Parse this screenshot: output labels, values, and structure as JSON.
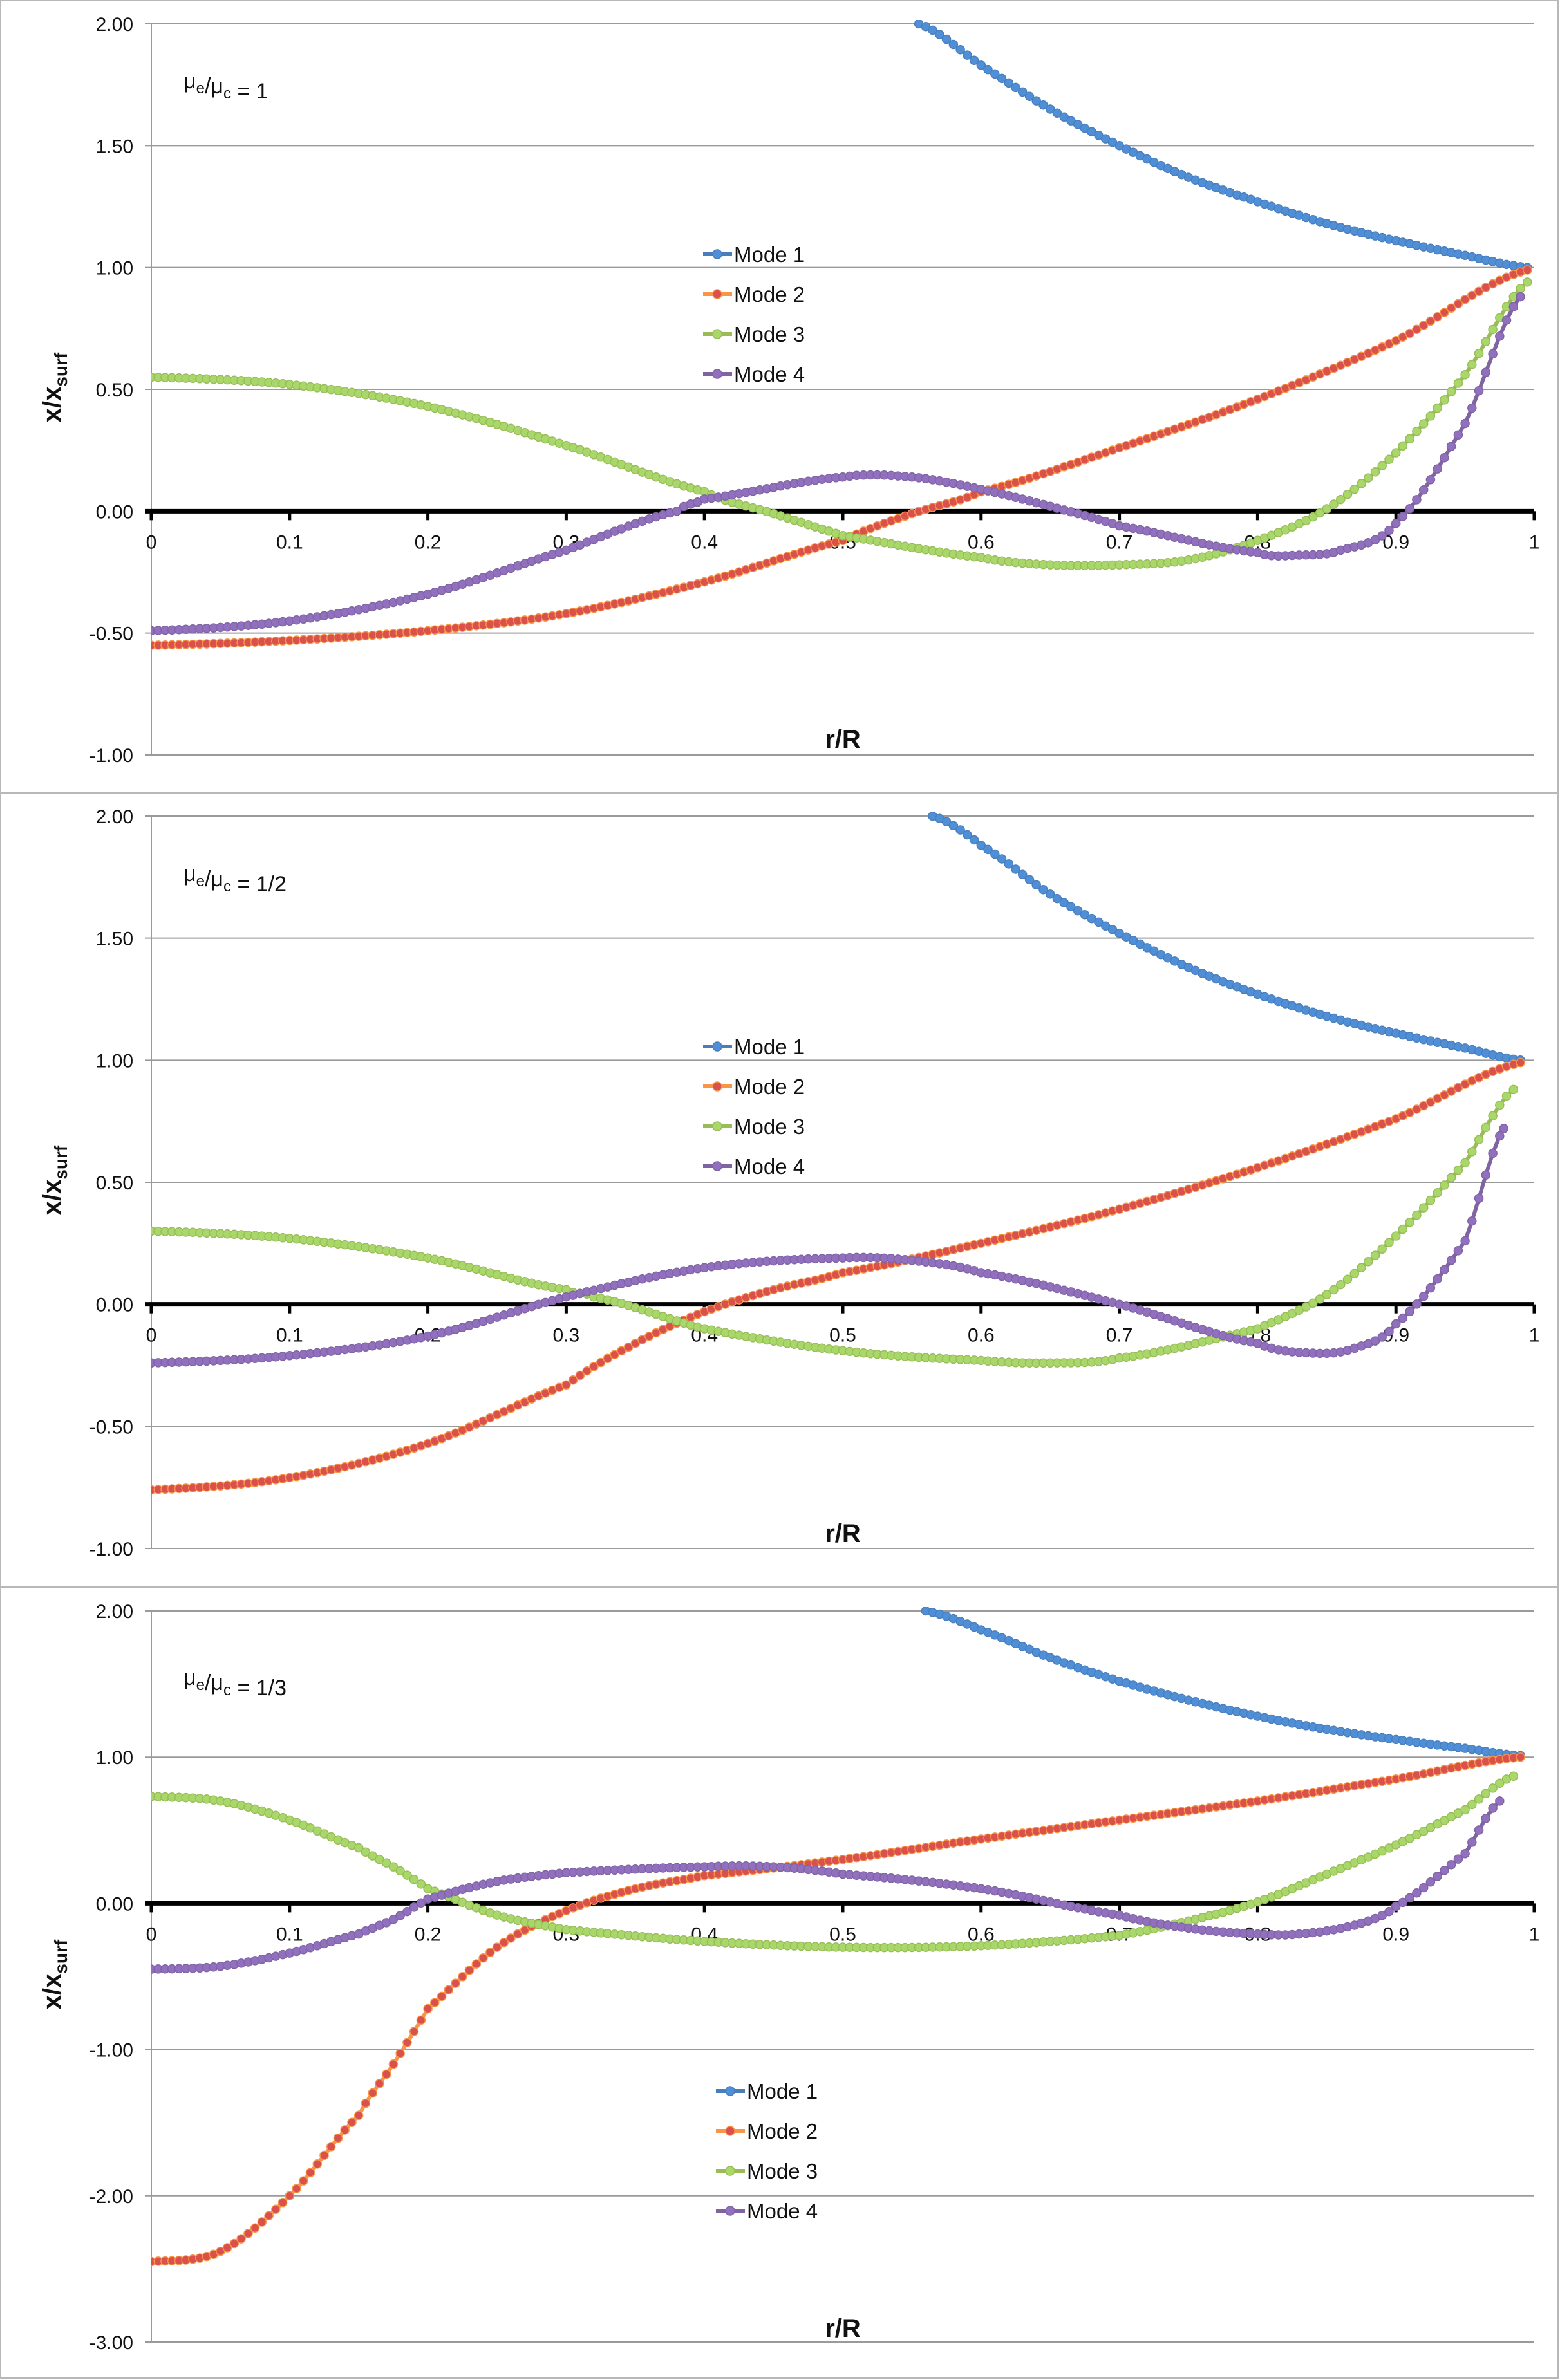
{
  "colors": {
    "mode1": {
      "line": "#4a7ebb",
      "marker": "#4f8fd8"
    },
    "mode2": {
      "line": "#f79646",
      "marker": "#d9504c"
    },
    "mode3": {
      "line": "#9bbb59",
      "marker": "#a8d86a"
    },
    "mode4": {
      "line": "#8064a2",
      "marker": "#9070bf"
    },
    "grid": "#9a9a9a",
    "zero_axis": "#000000"
  },
  "chart_data": [
    {
      "type": "line",
      "annotation": "μe/μc = 1",
      "annotation_parts": {
        "mu": "μ",
        "sub1": "e",
        "slash": "/",
        "sub2": "c",
        "rhs": " = 1"
      },
      "xlabel": "r/R",
      "ylabel": "x/x_surf",
      "ylabel_parts": {
        "main": "x/x",
        "sub": "surf"
      },
      "xlim": [
        0,
        1
      ],
      "ylim": [
        -1.0,
        2.0
      ],
      "yticks": [
        "2.00",
        "1.50",
        "1.00",
        "0.50",
        "0.00",
        "-0.50",
        "-1.00"
      ],
      "ytick_values": [
        2.0,
        1.5,
        1.0,
        0.5,
        0.0,
        -0.5,
        -1.0
      ],
      "xticks": [
        "0",
        "0.1",
        "0.2",
        "0.3",
        "0.4",
        "0.5",
        "0.6",
        "0.7",
        "0.8",
        "0.9",
        "1"
      ],
      "grid": true,
      "legend": {
        "placement": "upper-center",
        "entries": [
          "Mode 1",
          "Mode 2",
          "Mode 3",
          "Mode 4"
        ]
      },
      "series": [
        {
          "name": "Mode 1",
          "x": [
            0.555,
            0.6,
            0.65,
            0.7,
            0.75,
            0.8,
            0.85,
            0.9,
            0.95,
            0.995
          ],
          "y": [
            2.0,
            1.83,
            1.65,
            1.5,
            1.37,
            1.27,
            1.18,
            1.11,
            1.05,
            1.0
          ]
        },
        {
          "name": "Mode 2",
          "x": [
            0,
            0.1,
            0.2,
            0.3,
            0.4,
            0.5,
            0.55,
            0.6,
            0.7,
            0.8,
            0.9,
            0.995
          ],
          "y": [
            -0.55,
            -0.53,
            -0.49,
            -0.42,
            -0.29,
            -0.12,
            -0.01,
            0.08,
            0.26,
            0.46,
            0.7,
            0.99
          ]
        },
        {
          "name": "Mode 3",
          "x": [
            0,
            0.1,
            0.2,
            0.3,
            0.4,
            0.45,
            0.5,
            0.6,
            0.65,
            0.7,
            0.75,
            0.8,
            0.85,
            0.9,
            0.95,
            0.995
          ],
          "y": [
            0.55,
            0.52,
            0.43,
            0.27,
            0.08,
            -0.01,
            -0.1,
            -0.19,
            -0.22,
            -0.22,
            -0.2,
            -0.12,
            0.01,
            0.24,
            0.56,
            0.94
          ]
        },
        {
          "name": "Mode 4",
          "x": [
            0,
            0.1,
            0.2,
            0.3,
            0.38,
            0.4,
            0.5,
            0.55,
            0.6,
            0.65,
            0.7,
            0.8,
            0.83,
            0.86,
            0.9,
            0.95,
            0.99
          ],
          "y": [
            -0.49,
            -0.45,
            -0.34,
            -0.16,
            0.0,
            0.05,
            0.14,
            0.14,
            0.09,
            0.02,
            -0.06,
            -0.17,
            -0.18,
            -0.16,
            -0.05,
            0.36,
            0.88
          ]
        }
      ]
    },
    {
      "type": "line",
      "annotation": "μe/μc = 1/2",
      "annotation_parts": {
        "mu": "μ",
        "sub1": "e",
        "slash": "/",
        "sub2": "c",
        "rhs": " = 1/2"
      },
      "xlabel": "r/R",
      "ylabel": "x/x_surf",
      "ylabel_parts": {
        "main": "x/x",
        "sub": "surf"
      },
      "xlim": [
        0,
        1
      ],
      "ylim": [
        -1.0,
        2.0
      ],
      "yticks": [
        "2.00",
        "1.50",
        "1.00",
        "0.50",
        "0.00",
        "-0.50",
        "-1.00"
      ],
      "ytick_values": [
        2.0,
        1.5,
        1.0,
        0.5,
        0.0,
        -0.5,
        -1.0
      ],
      "xticks": [
        "0",
        "0.1",
        "0.2",
        "0.3",
        "0.4",
        "0.5",
        "0.6",
        "0.7",
        "0.8",
        "0.9",
        "1"
      ],
      "grid": true,
      "legend": {
        "placement": "upper-center",
        "entries": [
          "Mode 1",
          "Mode 2",
          "Mode 3",
          "Mode 4"
        ]
      },
      "series": [
        {
          "name": "Mode 1",
          "x": [
            0.565,
            0.6,
            0.65,
            0.7,
            0.75,
            0.8,
            0.85,
            0.9,
            0.95,
            0.99
          ],
          "y": [
            2.0,
            1.88,
            1.68,
            1.52,
            1.38,
            1.27,
            1.18,
            1.11,
            1.05,
            1.0
          ]
        },
        {
          "name": "Mode 2",
          "x": [
            0,
            0.1,
            0.2,
            0.3,
            0.35,
            0.4,
            0.45,
            0.5,
            0.6,
            0.7,
            0.8,
            0.9,
            0.99
          ],
          "y": [
            -0.76,
            -0.71,
            -0.57,
            -0.33,
            -0.16,
            -0.03,
            0.06,
            0.13,
            0.25,
            0.39,
            0.56,
            0.76,
            0.99
          ]
        },
        {
          "name": "Mode 3",
          "x": [
            0,
            0.1,
            0.2,
            0.3,
            0.32,
            0.4,
            0.5,
            0.6,
            0.65,
            0.7,
            0.8,
            0.85,
            0.9,
            0.95,
            0.985
          ],
          "y": [
            0.3,
            0.27,
            0.19,
            0.06,
            0.03,
            -0.1,
            -0.19,
            -0.23,
            -0.24,
            -0.22,
            -0.1,
            0.04,
            0.28,
            0.58,
            0.88
          ]
        },
        {
          "name": "Mode 4",
          "x": [
            0,
            0.1,
            0.2,
            0.3,
            0.4,
            0.5,
            0.55,
            0.6,
            0.7,
            0.8,
            0.84,
            0.87,
            0.9,
            0.95,
            0.978
          ],
          "y": [
            -0.24,
            -0.21,
            -0.13,
            0.03,
            0.15,
            0.19,
            0.18,
            0.13,
            0.0,
            -0.16,
            -0.2,
            -0.18,
            -0.08,
            0.26,
            0.72
          ]
        }
      ]
    },
    {
      "type": "line",
      "annotation": "μe/μc = 1/3",
      "annotation_parts": {
        "mu": "μ",
        "sub1": "e",
        "slash": "/",
        "sub2": "c",
        "rhs": " = 1/3"
      },
      "xlabel": "r/R",
      "ylabel": "x/x_surf",
      "ylabel_parts": {
        "main": "x/x",
        "sub": "surf"
      },
      "xlim": [
        0,
        1
      ],
      "ylim": [
        -3.0,
        2.0
      ],
      "yticks": [
        "2.00",
        "1.00",
        "0.00",
        "-1.00",
        "-2.00",
        "-3.00"
      ],
      "ytick_values": [
        2.0,
        1.0,
        0.0,
        -1.0,
        -2.0,
        -3.0
      ],
      "xticks": [
        "0",
        "0.1",
        "0.2",
        "0.3",
        "0.4",
        "0.5",
        "0.6",
        "0.7",
        "0.8",
        "0.9",
        "1"
      ],
      "grid": true,
      "legend": {
        "placement": "lower-center",
        "entries": [
          "Mode 1",
          "Mode 2",
          "Mode 3",
          "Mode 4"
        ]
      },
      "series": [
        {
          "name": "Mode 1",
          "x": [
            0.56,
            0.6,
            0.65,
            0.7,
            0.75,
            0.8,
            0.85,
            0.9,
            0.95,
            0.99
          ],
          "y": [
            2.0,
            1.87,
            1.68,
            1.52,
            1.39,
            1.28,
            1.19,
            1.12,
            1.06,
            1.01
          ]
        },
        {
          "name": "Mode 2",
          "x": [
            0,
            0.05,
            0.1,
            0.15,
            0.175,
            0.2,
            0.25,
            0.3,
            0.35,
            0.4,
            0.5,
            0.6,
            0.7,
            0.8,
            0.9,
            0.99
          ],
          "y": [
            -2.45,
            -2.38,
            -2.0,
            -1.45,
            -1.1,
            -0.72,
            -0.3,
            -0.05,
            0.1,
            0.19,
            0.3,
            0.44,
            0.57,
            0.7,
            0.85,
            1.0
          ]
        },
        {
          "name": "Mode 3",
          "x": [
            0,
            0.05,
            0.1,
            0.15,
            0.175,
            0.2,
            0.25,
            0.3,
            0.4,
            0.5,
            0.6,
            0.7,
            0.75,
            0.8,
            0.85,
            0.9,
            0.95,
            0.985
          ],
          "y": [
            0.73,
            0.7,
            0.57,
            0.38,
            0.25,
            0.1,
            -0.08,
            -0.18,
            -0.26,
            -0.3,
            -0.29,
            -0.22,
            -0.12,
            0.01,
            0.2,
            0.4,
            0.64,
            0.87
          ]
        },
        {
          "name": "Mode 4",
          "x": [
            0,
            0.05,
            0.1,
            0.15,
            0.175,
            0.2,
            0.25,
            0.3,
            0.4,
            0.45,
            0.5,
            0.6,
            0.7,
            0.75,
            0.8,
            0.83,
            0.87,
            0.9,
            0.95,
            0.975
          ],
          "y": [
            -0.45,
            -0.43,
            -0.34,
            -0.21,
            -0.11,
            0.03,
            0.15,
            0.21,
            0.25,
            0.25,
            0.2,
            0.1,
            -0.08,
            -0.17,
            -0.21,
            -0.21,
            -0.15,
            -0.02,
            0.34,
            0.7
          ]
        }
      ]
    }
  ]
}
